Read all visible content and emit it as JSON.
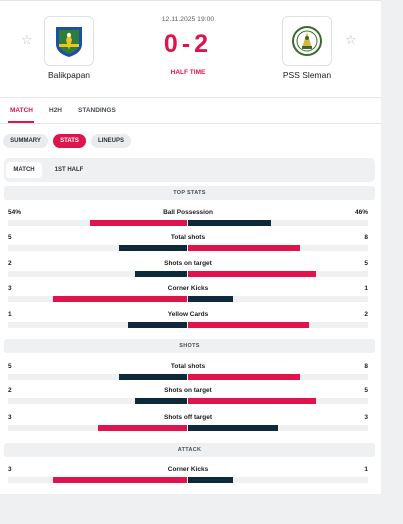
{
  "match": {
    "date": "12.11.2025 19:00",
    "score": "0-2",
    "status": "HALF TIME",
    "home": {
      "name": "Balikpapan"
    },
    "away": {
      "name": "PSS Sleman"
    }
  },
  "icons": {
    "favorite": "star-outline-icon",
    "home_logo": "balikpapan-crest",
    "away_logo": "pss-sleman-crest"
  },
  "colors": {
    "accent": "#e0144c",
    "dark": "#0e2a3a",
    "track": "#eef0f2"
  },
  "main_tabs": [
    "MATCH",
    "H2H",
    "STANDINGS"
  ],
  "sub_tabs": [
    "SUMMARY",
    "STATS",
    "LINEUPS"
  ],
  "periods": [
    "MATCH",
    "1ST HALF"
  ],
  "sections": [
    {
      "title": "TOP STATS",
      "stats": [
        {
          "name": "Ball Possession",
          "home": "54%",
          "away": "46%",
          "home_share": 0.54,
          "away_share": 0.46
        },
        {
          "name": "Total shots",
          "home": "5",
          "away": "8",
          "home_share": 0.38,
          "away_share": 0.62
        },
        {
          "name": "Shots on target",
          "home": "2",
          "away": "5",
          "home_share": 0.29,
          "away_share": 0.71
        },
        {
          "name": "Corner Kicks",
          "home": "3",
          "away": "1",
          "home_share": 0.75,
          "away_share": 0.25
        },
        {
          "name": "Yellow Cards",
          "home": "1",
          "away": "2",
          "home_share": 0.33,
          "away_share": 0.67
        }
      ]
    },
    {
      "title": "SHOTS",
      "stats": [
        {
          "name": "Total shots",
          "home": "5",
          "away": "8",
          "home_share": 0.38,
          "away_share": 0.62
        },
        {
          "name": "Shots on target",
          "home": "2",
          "away": "5",
          "home_share": 0.29,
          "away_share": 0.71
        },
        {
          "name": "Shots off target",
          "home": "3",
          "away": "3",
          "home_share": 0.5,
          "away_share": 0.5
        }
      ]
    },
    {
      "title": "ATTACK",
      "stats": [
        {
          "name": "Corner Kicks",
          "home": "3",
          "away": "1",
          "home_share": 0.75,
          "away_share": 0.25
        }
      ]
    }
  ]
}
